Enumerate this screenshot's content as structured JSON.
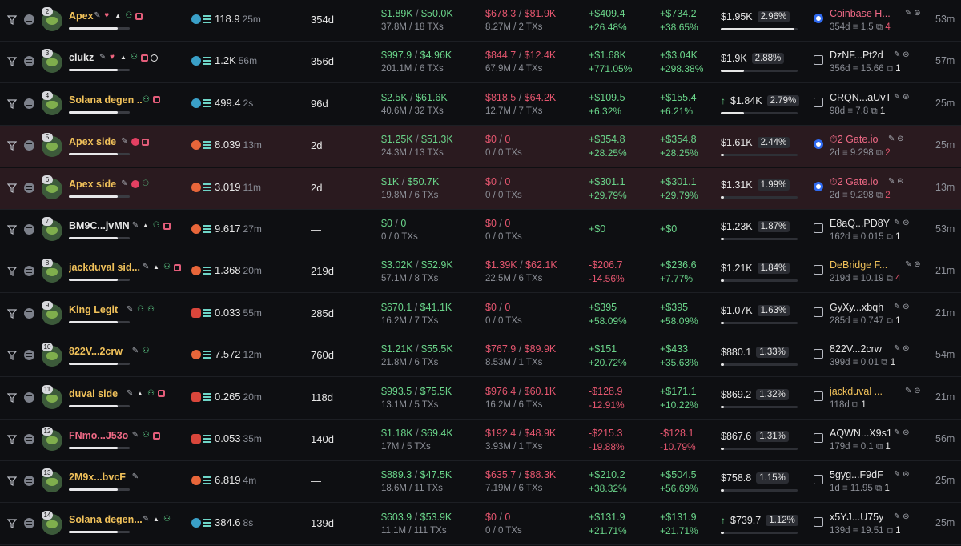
{
  "rows": [
    {
      "rank": "2",
      "name": "Apex",
      "name_color": "gold",
      "tags": [
        "pencil",
        "heart",
        "up",
        "user",
        "stack"
      ],
      "highlight": false,
      "bal_icon": "dolphin-icon",
      "balance": "118.9",
      "bal_time": "25m",
      "age": "354d",
      "buy_usd": "$1.89K",
      "buy_usd2": "$50.0K",
      "buy_detail": "37.8M / 18 TXs",
      "sell_usd": "$678.3",
      "sell_usd2": "$81.9K",
      "sell_detail": "8.27M / 2 TXs",
      "pnl": "+$409.4",
      "pnl_pct": "+26.48%",
      "pnl_color": "g",
      "upnl": "+$734.2",
      "upnl_pct": "+38.65%",
      "upnl_color": "g",
      "holding": "$1.95K",
      "hold_pct": "2.96%",
      "hold_arrow": "",
      "hold_fill": 0.96,
      "ex_icon": "coinbase-icon",
      "ex_name": "Coinbase H...",
      "ex_color": "pink",
      "ex_age": "354d",
      "ex_sol": "1.5",
      "ex_count": "4",
      "ex_count_color": "r",
      "last": "53m"
    },
    {
      "rank": "3",
      "name": "clukz",
      "name_color": "white",
      "tags": [
        "pencil",
        "heart",
        "up",
        "user",
        "stack",
        "target"
      ],
      "highlight": false,
      "bal_icon": "whale-icon",
      "balance": "1.2K",
      "bal_time": "56m",
      "age": "356d",
      "buy_usd": "$997.9",
      "buy_usd2": "$4.96K",
      "buy_detail": "201.1M / 6 TXs",
      "sell_usd": "$844.7",
      "sell_usd2": "$12.4K",
      "sell_detail": "67.9M / 4 TXs",
      "pnl": "+$1.68K",
      "pnl_pct": "+771.05%",
      "pnl_color": "g",
      "upnl": "+$3.04K",
      "upnl_pct": "+298.38%",
      "upnl_color": "g",
      "holding": "$1.9K",
      "hold_pct": "2.88%",
      "hold_arrow": "",
      "hold_fill": 0.3,
      "ex_icon": "transfer-icon",
      "ex_name": "DzNF...Pt2d",
      "ex_color": "white",
      "ex_age": "356d",
      "ex_sol": "15.66",
      "ex_count": "1",
      "ex_count_color": "w",
      "last": "57m"
    },
    {
      "rank": "4",
      "name": "Solana degen ...",
      "name_color": "gold",
      "tags": [
        "user",
        "stack"
      ],
      "highlight": false,
      "bal_icon": "dolphin-icon",
      "balance": "499.4",
      "bal_time": "2s",
      "age": "96d",
      "buy_usd": "$2.5K",
      "buy_usd2": "$61.6K",
      "buy_detail": "40.6M / 32 TXs",
      "sell_usd": "$818.5",
      "sell_usd2": "$64.2K",
      "sell_detail": "12.7M / 7 TXs",
      "pnl": "+$109.5",
      "pnl_pct": "+6.32%",
      "pnl_color": "g",
      "upnl": "+$155.4",
      "upnl_pct": "+6.21%",
      "upnl_color": "g",
      "holding": "$1.84K",
      "hold_pct": "2.79%",
      "hold_arrow": "↑",
      "hold_fill": 0.3,
      "ex_icon": "transfer-icon",
      "ex_name": "CRQN...aUvT",
      "ex_color": "white",
      "ex_age": "98d",
      "ex_sol": "7.8",
      "ex_count": "1",
      "ex_count_color": "w",
      "last": "25m"
    },
    {
      "rank": "5",
      "name": "Apex side",
      "name_color": "gold",
      "tags": [
        "pencil",
        "alert",
        "stack"
      ],
      "highlight": true,
      "bal_icon": "fish-icon",
      "balance": "8.039",
      "bal_time": "13m",
      "age": "2d",
      "buy_usd": "$1.25K",
      "buy_usd2": "$51.3K",
      "buy_detail": "24.3M / 13 TXs",
      "sell_usd": "$0",
      "sell_usd2": "0",
      "sell_detail": "0 / 0 TXs",
      "pnl": "+$354.8",
      "pnl_pct": "+28.25%",
      "pnl_color": "g",
      "upnl": "+$354.8",
      "upnl_pct": "+28.25%",
      "upnl_color": "g",
      "holding": "$1.61K",
      "hold_pct": "2.44%",
      "hold_arrow": "",
      "hold_fill": 0.04,
      "ex_icon": "coinbase-icon",
      "ex_name": "⏱2 Gate.io",
      "ex_color": "pink",
      "ex_age": "2d",
      "ex_sol": "9.298",
      "ex_count": "2",
      "ex_count_color": "r",
      "last": "25m"
    },
    {
      "rank": "6",
      "name": "Apex side",
      "name_color": "gold",
      "tags": [
        "pencil",
        "alert",
        "user"
      ],
      "highlight": true,
      "bal_icon": "fish-icon",
      "balance": "3.019",
      "bal_time": "11m",
      "age": "2d",
      "buy_usd": "$1K",
      "buy_usd2": "$50.7K",
      "buy_detail": "19.8M / 6 TXs",
      "sell_usd": "$0",
      "sell_usd2": "0",
      "sell_detail": "0 / 0 TXs",
      "pnl": "+$301.1",
      "pnl_pct": "+29.79%",
      "pnl_color": "g",
      "upnl": "+$301.1",
      "upnl_pct": "+29.79%",
      "upnl_color": "g",
      "holding": "$1.31K",
      "hold_pct": "1.99%",
      "hold_arrow": "",
      "hold_fill": 0.04,
      "ex_icon": "coinbase-icon",
      "ex_name": "⏱2 Gate.io",
      "ex_color": "pink",
      "ex_age": "2d",
      "ex_sol": "9.298",
      "ex_count": "2",
      "ex_count_color": "r",
      "last": "13m"
    },
    {
      "rank": "7",
      "name": "BM9C...jvMN",
      "name_color": "white",
      "tags": [
        "pencil",
        "up",
        "user",
        "stack"
      ],
      "highlight": false,
      "bal_icon": "fish-icon",
      "balance": "9.617",
      "bal_time": "27m",
      "age": "—",
      "buy_usd": "$0",
      "buy_usd2": "0",
      "buy_detail": "0 / 0 TXs",
      "sell_usd": "$0",
      "sell_usd2": "0",
      "sell_detail": "0 / 0 TXs",
      "pnl": "+$0",
      "pnl_pct": "",
      "pnl_color": "g",
      "upnl": "+$0",
      "upnl_pct": "",
      "upnl_color": "g",
      "holding": "$1.23K",
      "hold_pct": "1.87%",
      "hold_arrow": "",
      "hold_fill": 0.04,
      "ex_icon": "transfer-icon",
      "ex_name": "E8aQ...PD8Y",
      "ex_color": "white",
      "ex_age": "162d",
      "ex_sol": "0.015",
      "ex_count": "1",
      "ex_count_color": "w",
      "last": "53m"
    },
    {
      "rank": "8",
      "name": "jackduval sid...",
      "name_color": "gold",
      "tags": [
        "pencil",
        "up",
        "user",
        "stack"
      ],
      "highlight": false,
      "bal_icon": "fish-icon",
      "balance": "1.368",
      "bal_time": "20m",
      "age": "219d",
      "buy_usd": "$3.02K",
      "buy_usd2": "$52.9K",
      "buy_detail": "57.1M / 8 TXs",
      "sell_usd": "$1.39K",
      "sell_usd2": "$62.1K",
      "sell_detail": "22.5M / 6 TXs",
      "pnl": "-$206.7",
      "pnl_pct": "-14.56%",
      "pnl_color": "r",
      "upnl": "+$236.6",
      "upnl_pct": "+7.77%",
      "upnl_color": "g",
      "holding": "$1.21K",
      "hold_pct": "1.84%",
      "hold_arrow": "",
      "hold_fill": 0.04,
      "ex_icon": "transfer-icon",
      "ex_name": "DeBridge F...",
      "ex_color": "gold",
      "ex_age": "219d",
      "ex_sol": "10.19",
      "ex_count": "4",
      "ex_count_color": "r",
      "last": "21m"
    },
    {
      "rank": "9",
      "name": "King Legit",
      "name_color": "gold",
      "tags": [
        "pencil",
        "user",
        "user"
      ],
      "highlight": false,
      "bal_icon": "crab-icon",
      "balance": "0.033",
      "bal_time": "55m",
      "age": "285d",
      "buy_usd": "$670.1",
      "buy_usd2": "$41.1K",
      "buy_detail": "16.2M / 7 TXs",
      "sell_usd": "$0",
      "sell_usd2": "0",
      "sell_detail": "0 / 0 TXs",
      "pnl": "+$395",
      "pnl_pct": "+58.09%",
      "pnl_color": "g",
      "upnl": "+$395",
      "upnl_pct": "+58.09%",
      "upnl_color": "g",
      "holding": "$1.07K",
      "hold_pct": "1.63%",
      "hold_arrow": "",
      "hold_fill": 0.04,
      "ex_icon": "transfer-icon",
      "ex_name": "GyXy...xbqh",
      "ex_color": "white",
      "ex_age": "285d",
      "ex_sol": "0.747",
      "ex_count": "1",
      "ex_count_color": "w",
      "last": "21m"
    },
    {
      "rank": "10",
      "name": "822V...2crw",
      "name_color": "gold",
      "tags": [
        "pencil",
        "user"
      ],
      "highlight": false,
      "bal_icon": "fish-icon",
      "balance": "7.572",
      "bal_time": "12m",
      "age": "760d",
      "buy_usd": "$1.21K",
      "buy_usd2": "$55.5K",
      "buy_detail": "21.8M / 6 TXs",
      "sell_usd": "$767.9",
      "sell_usd2": "$89.9K",
      "sell_detail": "8.53M / 1 TXs",
      "pnl": "+$151",
      "pnl_pct": "+20.72%",
      "pnl_color": "g",
      "upnl": "+$433",
      "upnl_pct": "+35.63%",
      "upnl_color": "g",
      "holding": "$880.1",
      "hold_pct": "1.33%",
      "hold_arrow": "",
      "hold_fill": 0.04,
      "ex_icon": "transfer-icon",
      "ex_name": "822V...2crw",
      "ex_color": "white",
      "ex_age": "399d",
      "ex_sol": "0.01",
      "ex_count": "1",
      "ex_count_color": "w",
      "last": "54m"
    },
    {
      "rank": "11",
      "name": "duval side",
      "name_color": "gold",
      "tags": [
        "pencil",
        "up",
        "user",
        "stack"
      ],
      "highlight": false,
      "bal_icon": "crab-icon",
      "balance": "0.265",
      "bal_time": "20m",
      "age": "118d",
      "buy_usd": "$993.5",
      "buy_usd2": "$75.5K",
      "buy_detail": "13.1M / 5 TXs",
      "sell_usd": "$976.4",
      "sell_usd2": "$60.1K",
      "sell_detail": "16.2M / 6 TXs",
      "pnl": "-$128.9",
      "pnl_pct": "-12.91%",
      "pnl_color": "r",
      "upnl": "+$171.1",
      "upnl_pct": "+10.22%",
      "upnl_color": "g",
      "holding": "$869.2",
      "hold_pct": "1.32%",
      "hold_arrow": "",
      "hold_fill": 0.04,
      "ex_icon": "transfer-icon",
      "ex_name": "jackduval ...",
      "ex_color": "gold",
      "ex_age": "118d",
      "ex_sol": "",
      "ex_count": "1",
      "ex_count_color": "w",
      "last": "21m"
    },
    {
      "rank": "12",
      "name": "FNmo...J53o",
      "name_color": "pink",
      "tags": [
        "pencil",
        "user",
        "stack"
      ],
      "highlight": false,
      "bal_icon": "crab-icon",
      "balance": "0.053",
      "bal_time": "35m",
      "age": "140d",
      "buy_usd": "$1.18K",
      "buy_usd2": "$69.4K",
      "buy_detail": "17M / 5 TXs",
      "sell_usd": "$192.4",
      "sell_usd2": "$48.9K",
      "sell_detail": "3.93M / 1 TXs",
      "pnl": "-$215.3",
      "pnl_pct": "-19.88%",
      "pnl_color": "r",
      "upnl": "-$128.1",
      "upnl_pct": "-10.79%",
      "upnl_color": "r",
      "holding": "$867.6",
      "hold_pct": "1.31%",
      "hold_arrow": "",
      "hold_fill": 0.04,
      "ex_icon": "transfer-icon",
      "ex_name": "AQWN...X9s1",
      "ex_color": "white",
      "ex_age": "179d",
      "ex_sol": "0.1",
      "ex_count": "1",
      "ex_count_color": "w",
      "last": "56m"
    },
    {
      "rank": "13",
      "name": "2M9x...bvcF",
      "name_color": "gold",
      "tags": [
        "pencil"
      ],
      "highlight": false,
      "bal_icon": "fish-icon",
      "balance": "6.819",
      "bal_time": "4m",
      "age": "—",
      "buy_usd": "$889.3",
      "buy_usd2": "$47.5K",
      "buy_detail": "18.6M / 11 TXs",
      "sell_usd": "$635.7",
      "sell_usd2": "$88.3K",
      "sell_detail": "7.19M / 6 TXs",
      "pnl": "+$210.2",
      "pnl_pct": "+38.32%",
      "pnl_color": "g",
      "upnl": "+$504.5",
      "upnl_pct": "+56.69%",
      "upnl_color": "g",
      "holding": "$758.8",
      "hold_pct": "1.15%",
      "hold_arrow": "",
      "hold_fill": 0.04,
      "ex_icon": "transfer-icon",
      "ex_name": "5gyg...F9dF",
      "ex_color": "white",
      "ex_age": "1d",
      "ex_sol": "11.95",
      "ex_count": "1",
      "ex_count_color": "w",
      "last": "25m"
    },
    {
      "rank": "14",
      "name": "Solana degen...",
      "name_color": "gold",
      "tags": [
        "pencil",
        "up",
        "user"
      ],
      "highlight": false,
      "bal_icon": "dolphin-icon",
      "balance": "384.6",
      "bal_time": "8s",
      "age": "139d",
      "buy_usd": "$603.9",
      "buy_usd2": "$53.9K",
      "buy_detail": "11.1M / 111 TXs",
      "sell_usd": "$0",
      "sell_usd2": "0",
      "sell_detail": "0 / 0 TXs",
      "pnl": "+$131.9",
      "pnl_pct": "+21.71%",
      "pnl_color": "g",
      "upnl": "+$131.9",
      "upnl_pct": "+21.71%",
      "upnl_color": "g",
      "holding": "$739.7",
      "hold_pct": "1.12%",
      "hold_arrow": "↑",
      "hold_fill": 0.04,
      "ex_icon": "transfer-icon",
      "ex_name": "x5YJ...U75y",
      "ex_color": "white",
      "ex_age": "139d",
      "ex_sol": "19.51",
      "ex_count": "1",
      "ex_count_color": "w",
      "last": "25m"
    }
  ]
}
